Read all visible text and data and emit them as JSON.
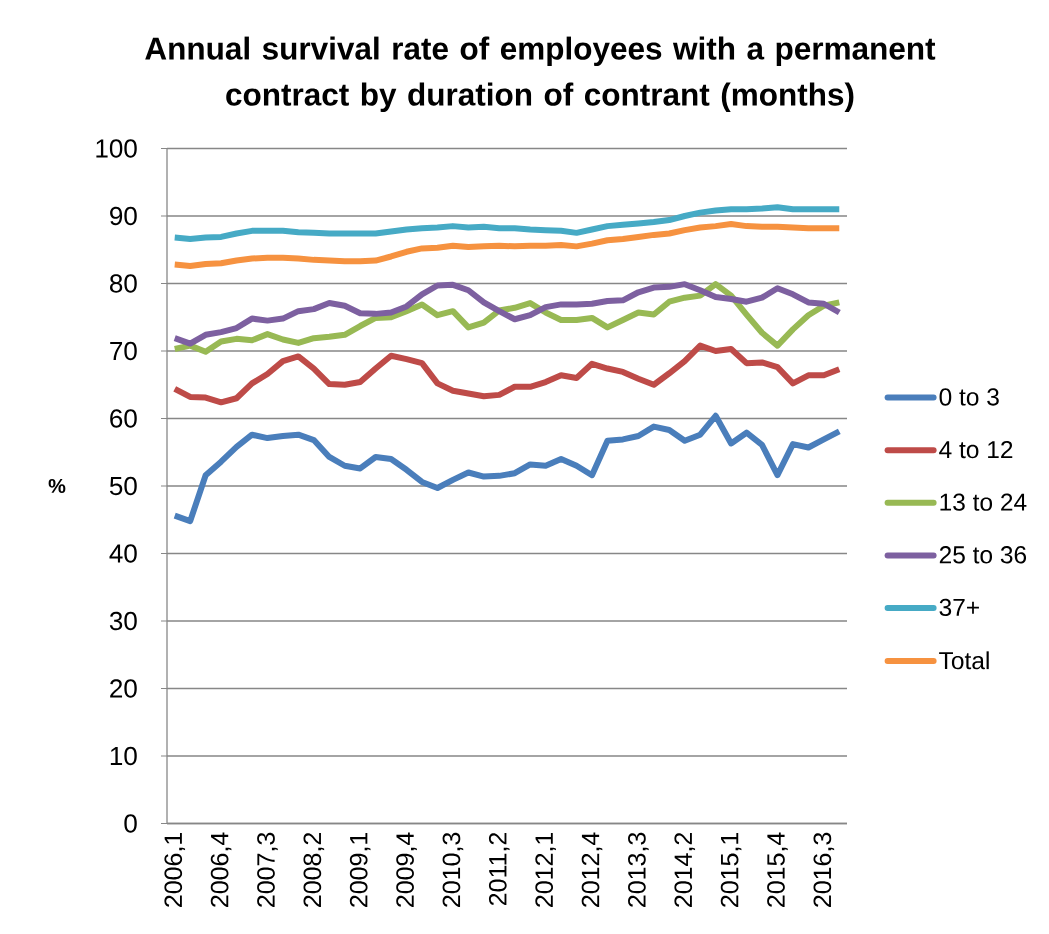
{
  "chart_data": {
    "type": "line",
    "title": "Annual survival rate of employees with a permanent contract by duration of contrant (months)",
    "ylabel": "%",
    "categories": [
      "2006,1",
      null,
      null,
      "2006,4",
      null,
      null,
      "2007,3",
      null,
      null,
      "2008,2",
      null,
      null,
      "2009,1",
      null,
      null,
      "2009,4",
      null,
      null,
      "2010,3",
      null,
      null,
      "2011,2",
      null,
      null,
      "2012,1",
      null,
      null,
      "2012,4",
      null,
      null,
      "2013,3",
      null,
      null,
      "2014,2",
      null,
      null,
      "2015,1",
      null,
      null,
      "2015,4",
      null,
      null,
      "2016,3",
      null
    ],
    "series": [
      {
        "name": "0 to 3",
        "color": "#4a7ebb",
        "values": [
          45.6,
          44.8,
          51.6,
          53.6,
          55.8,
          57.6,
          57.1,
          57.4,
          57.6,
          56.8,
          54.3,
          53.0,
          52.6,
          54.3,
          54.0,
          52.4,
          50.6,
          49.7,
          50.9,
          52.0,
          51.4,
          51.5,
          51.9,
          53.2,
          53.0,
          54.0,
          53.0,
          51.6,
          56.7,
          56.9,
          57.4,
          58.8,
          58.3,
          56.7,
          57.6,
          60.4,
          56.3,
          57.9,
          56.1,
          51.6,
          56.2,
          55.7,
          56.9,
          58.1
        ]
      },
      {
        "name": "4 to 12",
        "color": "#be4b48",
        "values": [
          64.4,
          63.2,
          63.1,
          62.4,
          63.0,
          65.2,
          66.6,
          68.5,
          69.2,
          67.4,
          65.1,
          65.0,
          65.4,
          67.4,
          69.3,
          68.8,
          68.2,
          65.2,
          64.1,
          63.7,
          63.3,
          63.5,
          64.7,
          64.7,
          65.4,
          66.4,
          66.0,
          68.1,
          67.4,
          66.9,
          65.9,
          65.0,
          66.7,
          68.5,
          70.8,
          70.0,
          70.3,
          68.2,
          68.3,
          67.6,
          65.2,
          66.4,
          66.4,
          67.3
        ]
      },
      {
        "name": "13 to 24",
        "color": "#98b954",
        "values": [
          70.3,
          70.8,
          69.9,
          71.4,
          71.8,
          71.6,
          72.5,
          71.7,
          71.2,
          71.9,
          72.1,
          72.4,
          73.7,
          74.9,
          75.0,
          75.9,
          76.9,
          75.3,
          75.9,
          73.5,
          74.2,
          76.0,
          76.4,
          77.1,
          75.7,
          74.6,
          74.6,
          74.9,
          73.5,
          74.6,
          75.7,
          75.4,
          77.3,
          77.9,
          78.2,
          79.9,
          78.2,
          75.4,
          72.7,
          70.8,
          73.2,
          75.3,
          76.7,
          77.2
        ]
      },
      {
        "name": "25 to 36",
        "color": "#7d60a0",
        "values": [
          71.9,
          71.1,
          72.4,
          72.8,
          73.4,
          74.8,
          74.5,
          74.8,
          75.9,
          76.2,
          77.1,
          76.7,
          75.6,
          75.5,
          75.7,
          76.6,
          78.4,
          79.7,
          79.8,
          79.0,
          77.2,
          75.9,
          74.7,
          75.3,
          76.5,
          76.9,
          76.9,
          77.0,
          77.4,
          77.5,
          78.7,
          79.4,
          79.5,
          79.9,
          79.0,
          78.0,
          77.7,
          77.3,
          77.9,
          79.3,
          78.4,
          77.2,
          77.0,
          75.7
        ]
      },
      {
        "name": "37+",
        "color": "#46aac5",
        "values": [
          86.8,
          86.6,
          86.8,
          86.9,
          87.4,
          87.8,
          87.8,
          87.8,
          87.6,
          87.5,
          87.4,
          87.4,
          87.4,
          87.4,
          87.7,
          88.0,
          88.2,
          88.3,
          88.5,
          88.3,
          88.4,
          88.2,
          88.2,
          88.0,
          87.9,
          87.8,
          87.5,
          88.0,
          88.5,
          88.7,
          88.9,
          89.1,
          89.4,
          90.0,
          90.5,
          90.8,
          91.0,
          91.0,
          91.1,
          91.3,
          91.0,
          91.0,
          91.0,
          91.0
        ]
      },
      {
        "name": "Total",
        "color": "#f69240",
        "values": [
          82.8,
          82.6,
          82.9,
          83.0,
          83.4,
          83.7,
          83.8,
          83.8,
          83.7,
          83.5,
          83.4,
          83.3,
          83.3,
          83.4,
          84.0,
          84.7,
          85.2,
          85.3,
          85.6,
          85.4,
          85.5,
          85.6,
          85.5,
          85.6,
          85.6,
          85.7,
          85.5,
          85.9,
          86.4,
          86.6,
          86.9,
          87.2,
          87.4,
          87.9,
          88.3,
          88.5,
          88.8,
          88.5,
          88.4,
          88.4,
          88.3,
          88.2,
          88.2,
          88.2
        ]
      }
    ],
    "ylim": [
      0,
      100
    ],
    "yticks": [
      0,
      10,
      20,
      30,
      40,
      50,
      60,
      70,
      80,
      90,
      100
    ],
    "grid": "y",
    "legend": "right",
    "marker": "none",
    "line_style": "solid"
  }
}
